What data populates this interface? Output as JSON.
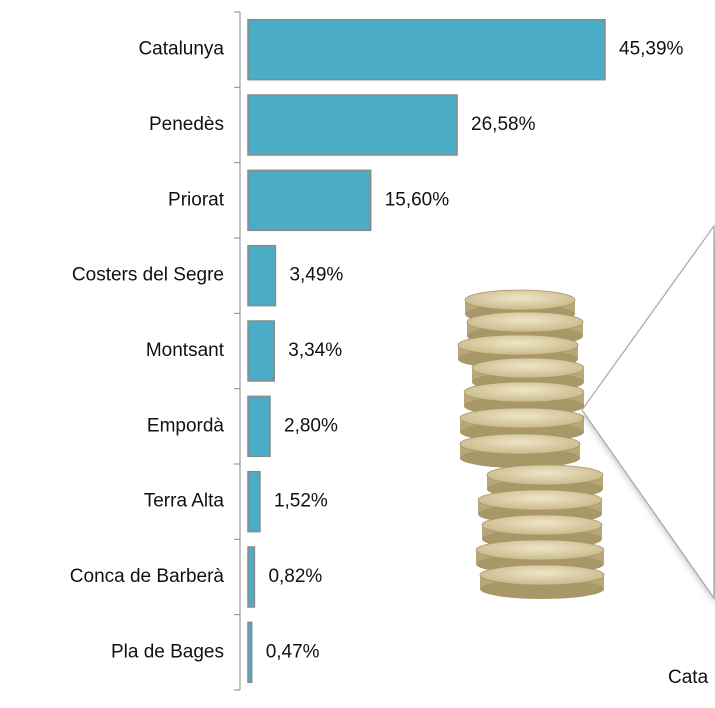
{
  "chart_data": {
    "type": "bar",
    "orientation": "horizontal",
    "categories": [
      "Catalunya",
      "Penedès",
      "Priorat",
      "Costers del Segre",
      "Montsant",
      "Empordà",
      "Terra Alta",
      "Conca de Barberà",
      "Pla de Bages"
    ],
    "values": [
      45.39,
      26.58,
      15.6,
      3.49,
      3.34,
      2.8,
      1.52,
      0.82,
      0.47
    ],
    "value_labels": [
      "45,39%",
      "26,58%",
      "15,60%",
      "3,49%",
      "3,34%",
      "2,80%",
      "1,52%",
      "0,82%",
      "0,47%"
    ],
    "color": "#4bacc6",
    "annotation": "Cata"
  }
}
